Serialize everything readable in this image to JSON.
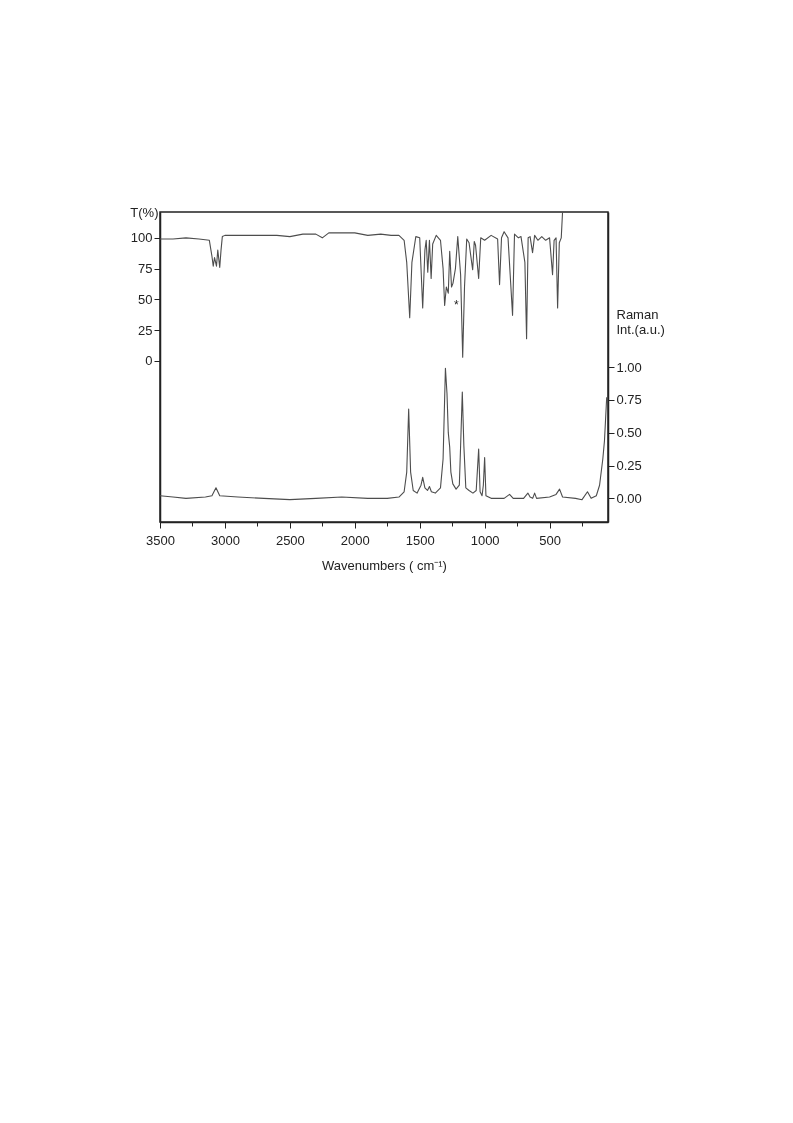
{
  "chart_data": {
    "type": "line",
    "xlabel": "Wavenumbers ( cm⁻¹)",
    "ylabel": "T(%)",
    "y2label": "Raman Int.(a.u.)",
    "xlim": [
      3500,
      50
    ],
    "xticks": [
      3500,
      {
        "value": 3250,
        "label": null
      },
      3000,
      {
        "value": 2750,
        "label": null
      },
      2500,
      {
        "value": 2250,
        "label": null
      },
      2000,
      {
        "value": 1750,
        "label": null
      },
      1500,
      {
        "value": 1250,
        "label": null
      },
      1000,
      {
        "value": 750,
        "label": null
      },
      500,
      {
        "value": 250,
        "label": null
      }
    ],
    "ylim": [
      -131,
      121
    ],
    "yticks": [
      0,
      25,
      50,
      75,
      100
    ],
    "y2lim": [
      -0.18,
      2.18
    ],
    "y2ticks": [
      {
        "value": 0,
        "label": "0.00"
      },
      0.25,
      {
        "value": 0.5,
        "label": "0.50"
      },
      0.75,
      {
        "value": 1,
        "label": "1.00"
      }
    ],
    "line_style": "solid",
    "annotations": [
      {
        "text": "*",
        "x": 1280,
        "y": 55
      }
    ],
    "series": [
      {
        "color": "#4d4d4d",
        "x": [
          3500,
          3400,
          3300,
          3200,
          3120,
          3100,
          3090,
          3080,
          3065,
          3055,
          3040,
          3030,
          3020,
          3000,
          2800,
          2600,
          2500,
          2400,
          2300,
          2250,
          2200,
          2000,
          1900,
          1800,
          1720,
          1660,
          1620,
          1600,
          1577,
          1560,
          1530,
          1500,
          1477,
          1460,
          1450,
          1438,
          1425,
          1412,
          1400,
          1373,
          1340,
          1320,
          1308,
          1295,
          1280,
          1269,
          1255,
          1244,
          1225,
          1207,
          1185,
          1169,
          1155,
          1138,
          1120,
          1100,
          1092,
          1080,
          1070,
          1046,
          1030,
          1000,
          950,
          900,
          885,
          870,
          850,
          820,
          785,
          770,
          740,
          720,
          690,
          677,
          665,
          650,
          631,
          615,
          590,
          560,
          530,
          500,
          490,
          477,
          465,
          450,
          438,
          425,
          410,
          400
        ],
        "values": [
          99,
          99,
          100,
          99,
          98,
          85,
          77,
          84,
          77,
          90,
          76,
          90,
          101,
          102,
          102,
          102,
          101,
          103,
          103,
          100,
          104,
          104,
          102,
          103,
          102,
          102,
          98,
          80,
          35,
          80,
          101,
          100,
          43,
          90,
          98,
          72,
          98,
          67,
          95,
          102,
          98,
          75,
          45,
          60,
          55,
          89,
          60,
          63,
          75,
          101,
          70,
          3,
          60,
          99,
          96,
          80,
          74,
          97,
          94,
          67,
          100,
          98,
          102,
          99,
          62,
          100,
          105,
          100,
          37,
          103,
          100,
          101,
          80,
          18,
          100,
          101,
          88,
          102,
          98,
          101,
          98,
          100,
          87,
          70,
          98,
          100,
          43,
          96,
          100,
          121
        ]
      },
      {
        "color": "#4d4d4d",
        "axis": "y2",
        "x": [
          3500,
          3400,
          3300,
          3150,
          3100,
          3069,
          3040,
          2900,
          2700,
          2500,
          2300,
          2100,
          1900,
          1750,
          1660,
          1620,
          1600,
          1585,
          1570,
          1550,
          1520,
          1490,
          1477,
          1460,
          1440,
          1425,
          1410,
          1380,
          1340,
          1320,
          1302,
          1290,
          1280,
          1269,
          1260,
          1245,
          1220,
          1195,
          1185,
          1172,
          1160,
          1145,
          1120,
          1090,
          1065,
          1046,
          1035,
          1020,
          1010,
          1000,
          990,
          950,
          850,
          808,
          780,
          700,
          667,
          650,
          630,
          615,
          600,
          500,
          450,
          423,
          400,
          300,
          250,
          208,
          180,
          140,
          115,
          90,
          77,
          60
        ],
        "values": [
          0.02,
          0.01,
          0.0,
          0.01,
          0.02,
          0.08,
          0.02,
          0.01,
          0.0,
          -0.01,
          0.0,
          0.01,
          0.0,
          0.0,
          0.01,
          0.05,
          0.2,
          0.68,
          0.2,
          0.06,
          0.04,
          0.1,
          0.16,
          0.08,
          0.06,
          0.09,
          0.05,
          0.04,
          0.08,
          0.3,
          0.99,
          0.8,
          0.5,
          0.39,
          0.2,
          0.11,
          0.07,
          0.1,
          0.4,
          0.81,
          0.4,
          0.08,
          0.06,
          0.04,
          0.06,
          0.375,
          0.05,
          0.02,
          0.1,
          0.31,
          0.02,
          0.0,
          0.0,
          0.03,
          0.0,
          0.0,
          0.04,
          0.01,
          0.0,
          0.04,
          0.0,
          0.01,
          0.03,
          0.07,
          0.01,
          0.0,
          -0.01,
          0.05,
          0.0,
          0.02,
          0.1,
          0.3,
          0.44,
          0.77
        ]
      }
    ]
  }
}
